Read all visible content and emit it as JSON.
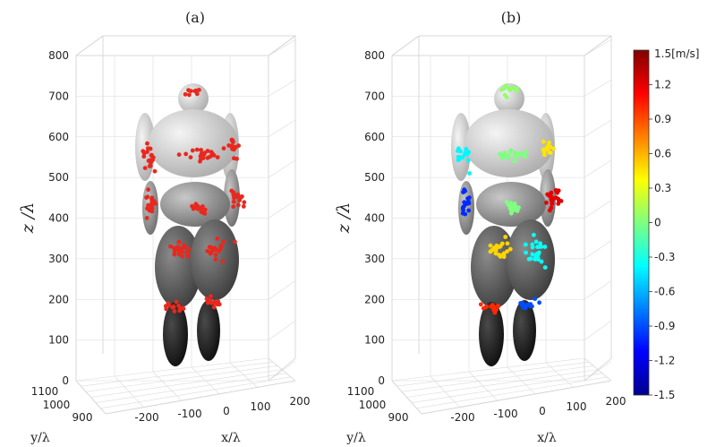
{
  "chart_data": [
    {
      "type": "scatter",
      "title": "(a)",
      "xlabel": "x/λ",
      "ylabel": "y/λ",
      "zlabel": "z /λ",
      "z_ticks": [
        "0",
        "100",
        "200",
        "300",
        "400",
        "500",
        "600",
        "700",
        "800"
      ],
      "x_ticks": [
        "-200",
        "-100",
        "0",
        "100",
        "200"
      ],
      "y_ticks": [
        "900",
        "1000",
        "1100"
      ],
      "zlim": [
        0,
        800
      ],
      "xlim": [
        -250,
        250
      ],
      "ylim": [
        850,
        1150
      ],
      "point_color": "#e8281e",
      "clusters": [
        {
          "name": "head",
          "z": 700,
          "n": 8
        },
        {
          "name": "left-upper-arm",
          "z": 560,
          "n": 20
        },
        {
          "name": "torso",
          "z": 560,
          "n": 22
        },
        {
          "name": "right-upper-arm",
          "z": 560,
          "n": 16
        },
        {
          "name": "left-forearm",
          "z": 430,
          "n": 18
        },
        {
          "name": "belly",
          "z": 430,
          "n": 16
        },
        {
          "name": "right-forearm",
          "z": 440,
          "n": 18
        },
        {
          "name": "left-thigh",
          "z": 300,
          "n": 22
        },
        {
          "name": "right-thigh",
          "z": 300,
          "n": 20
        },
        {
          "name": "left-knee",
          "z": 180,
          "n": 14
        },
        {
          "name": "right-knee",
          "z": 195,
          "n": 12
        }
      ]
    },
    {
      "type": "scatter",
      "title": "(b)",
      "xlabel": "x/λ",
      "ylabel": "y/λ",
      "zlabel": "z /λ",
      "z_ticks": [
        "0",
        "100",
        "200",
        "300",
        "400",
        "500",
        "600",
        "700",
        "800"
      ],
      "x_ticks": [
        "-200",
        "-100",
        "0",
        "100",
        "200"
      ],
      "y_ticks": [
        "900",
        "1000",
        "1100"
      ],
      "zlim": [
        0,
        800
      ],
      "colorbar": {
        "unit_label": "1.5[m/s]",
        "min": -1.5,
        "max": 1.5,
        "tick_labels": [
          "1.2",
          "0.9",
          "0.6",
          "0.3",
          "0",
          "-0.3",
          "-0.6",
          "-0.9",
          "-1.2",
          "-1.5"
        ]
      },
      "clusters": [
        {
          "name": "head",
          "z": 700,
          "n": 14,
          "velocity": 0.05
        },
        {
          "name": "left-upper-arm",
          "z": 560,
          "n": 16,
          "velocity": -0.4
        },
        {
          "name": "torso",
          "z": 560,
          "n": 22,
          "velocity": 0.0
        },
        {
          "name": "right-upper-arm",
          "z": 570,
          "n": 14,
          "velocity": 0.45
        },
        {
          "name": "left-forearm",
          "z": 430,
          "n": 18,
          "velocity": -1.0
        },
        {
          "name": "belly",
          "z": 430,
          "n": 16,
          "velocity": 0.0
        },
        {
          "name": "right-forearm",
          "z": 470,
          "n": 22,
          "velocity": 1.2
        },
        {
          "name": "left-thigh",
          "z": 310,
          "n": 22,
          "velocity": 0.5
        },
        {
          "name": "right-thigh",
          "z": 310,
          "n": 24,
          "velocity": -0.35
        },
        {
          "name": "left-knee",
          "z": 160,
          "n": 12,
          "velocity": 1.0
        },
        {
          "name": "right-knee",
          "z": 200,
          "n": 14,
          "velocity": -0.9
        }
      ]
    }
  ]
}
